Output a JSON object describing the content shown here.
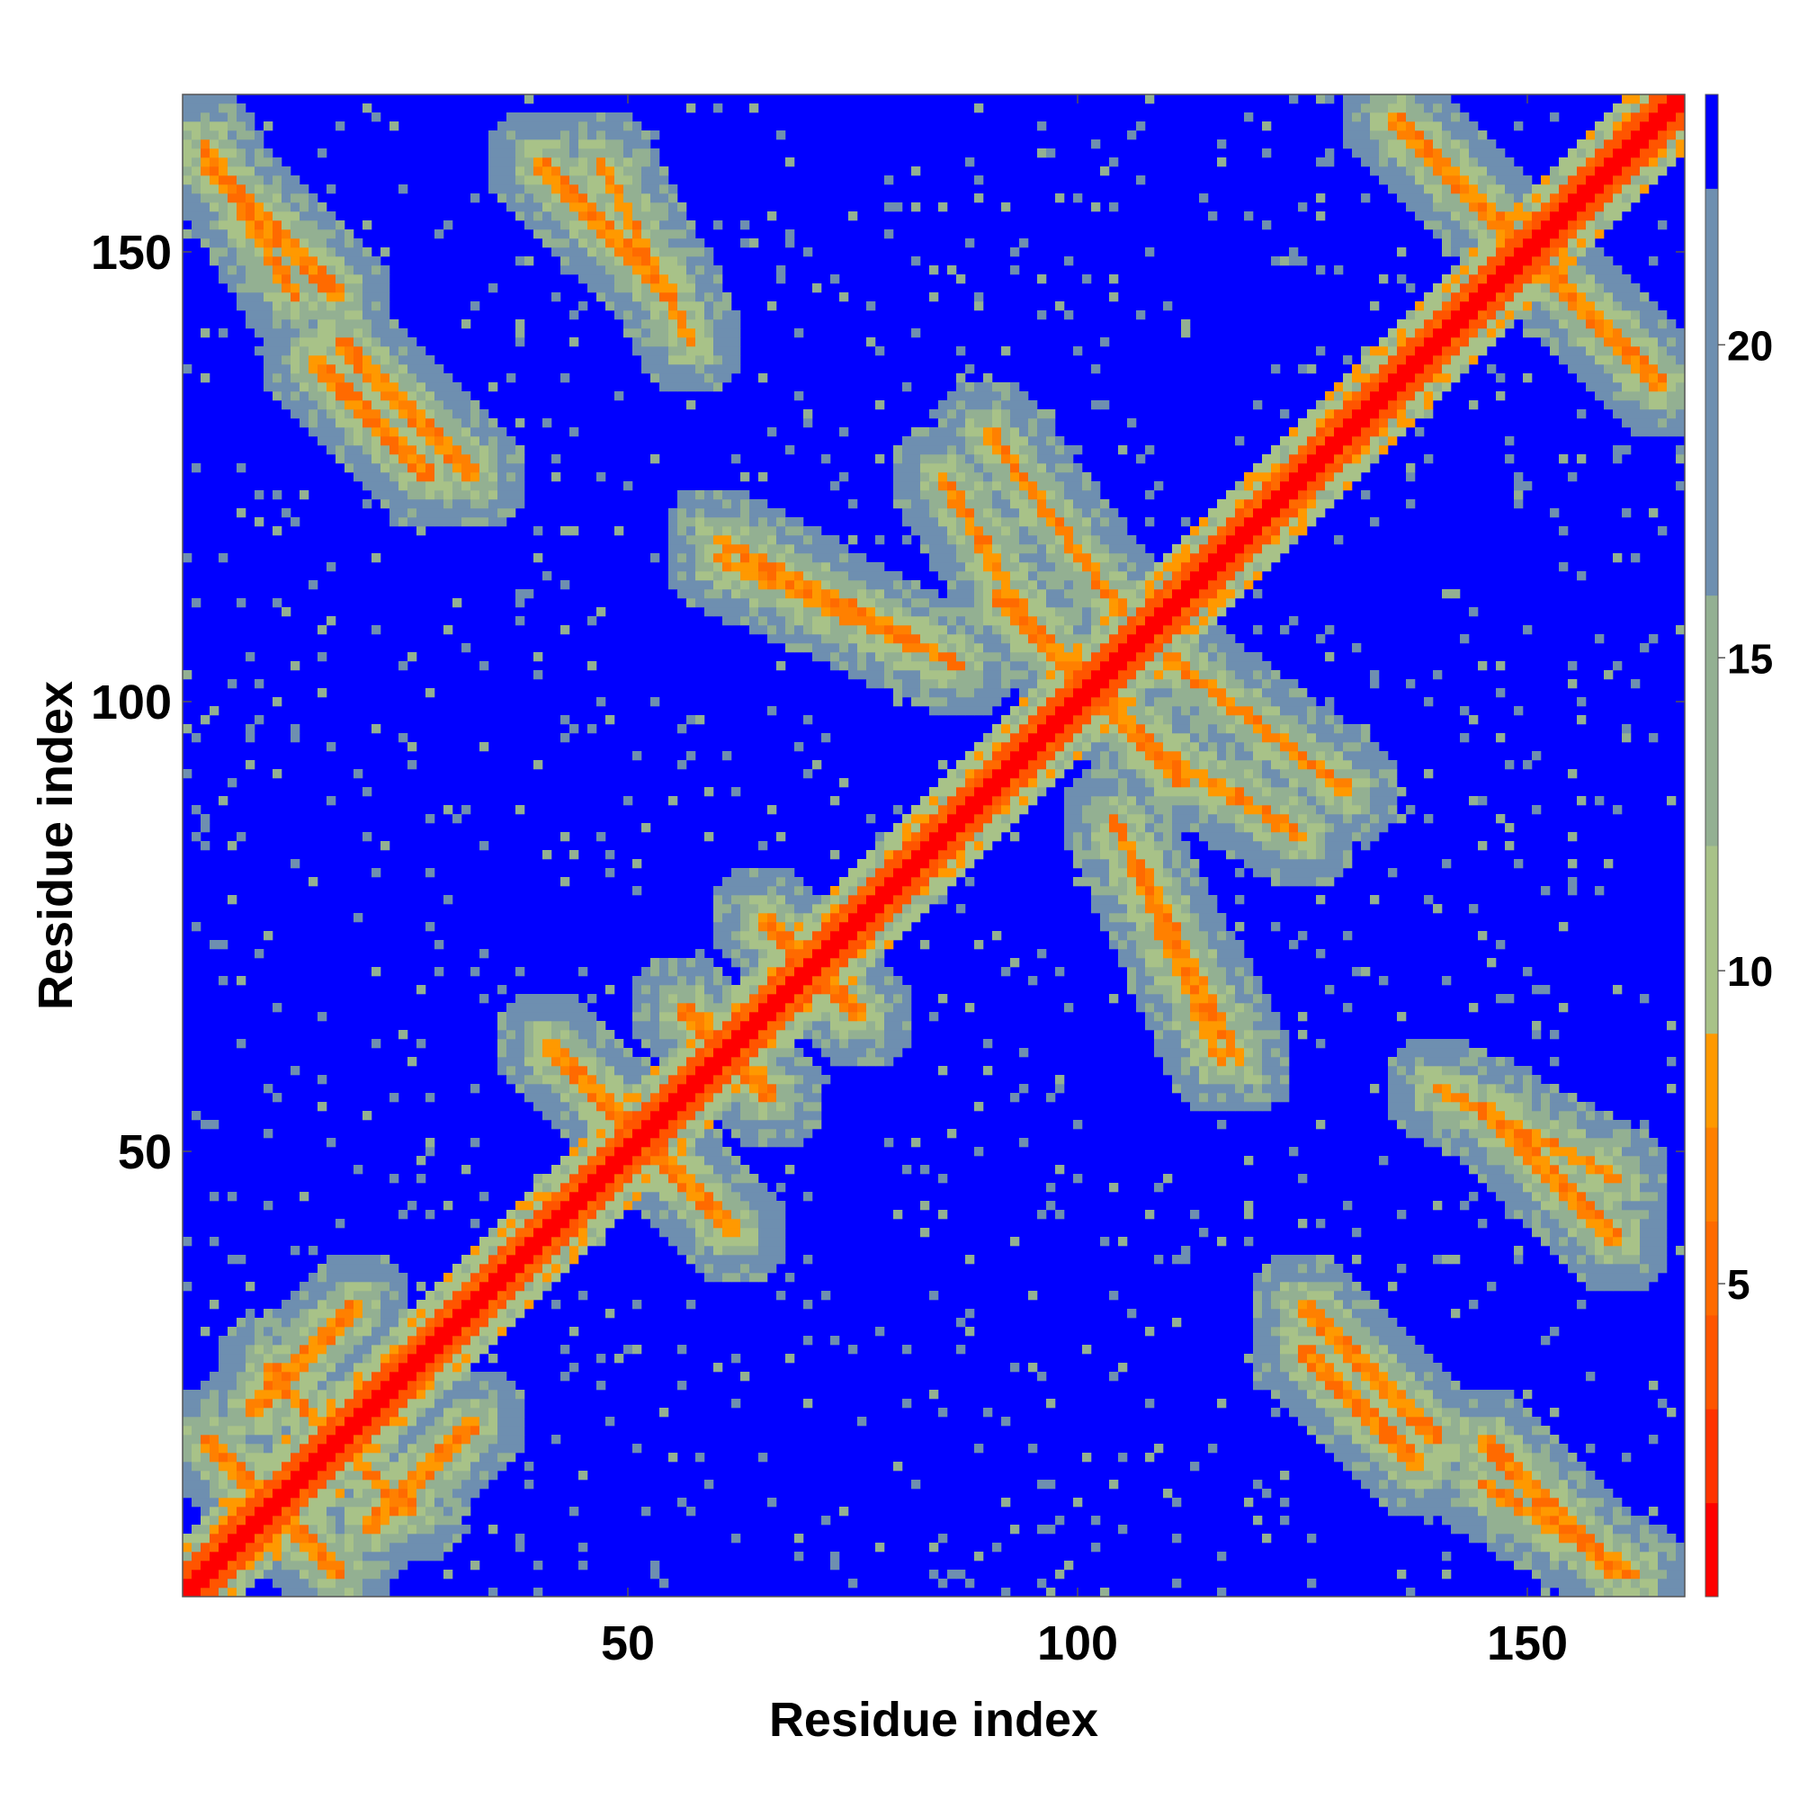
{
  "chart_data": {
    "type": "heatmap",
    "title": "",
    "xlabel": "Residue index",
    "ylabel": "Residue index",
    "n_residues": 167,
    "xlim": [
      1,
      167
    ],
    "ylim": [
      1,
      167
    ],
    "xticks": [
      50,
      100,
      150
    ],
    "yticks": [
      50,
      100,
      150
    ],
    "colorbar": {
      "ticks": [
        5,
        10,
        15,
        20
      ],
      "range": [
        0,
        24
      ],
      "bins": [
        {
          "from": 0,
          "to": 1.5,
          "color": "#ff0000"
        },
        {
          "from": 1.5,
          "to": 3,
          "color": "#ff3300"
        },
        {
          "from": 3,
          "to": 4.5,
          "color": "#ff5500"
        },
        {
          "from": 4.5,
          "to": 6,
          "color": "#ff6a00"
        },
        {
          "from": 6,
          "to": 7.5,
          "color": "#ff8000"
        },
        {
          "from": 7.5,
          "to": 9,
          "color": "#ff9900"
        },
        {
          "from": 9,
          "to": 12,
          "color": "#a8c288"
        },
        {
          "from": 12,
          "to": 16,
          "color": "#93b092"
        },
        {
          "from": 16,
          "to": 22.5,
          "color": "#6e8fb0"
        },
        {
          "from": 22.5,
          "to": 24,
          "color": "#0000ff"
        }
      ]
    },
    "colors": {
      "contact": "#ff0000",
      "near": "#ff8000",
      "mid": "#a8c288",
      "far": "#6e8fb0",
      "background": "#0000ff"
    },
    "contact_bands": [
      {
        "type": "antidiagonal",
        "a": [
          3,
          18
        ],
        "b": [
          18,
          3
        ]
      },
      {
        "type": "antidiagonal",
        "a": [
          10,
          26
        ],
        "b": [
          25,
          10
        ]
      },
      {
        "type": "parallel",
        "a": [
          8,
          21
        ],
        "b": [
          20,
          33
        ]
      },
      {
        "type": "parallel",
        "a": [
          3,
          160
        ],
        "b": [
          18,
          145
        ]
      },
      {
        "type": "parallel",
        "a": [
          15,
          138
        ],
        "b": [
          28,
          125
        ]
      },
      {
        "type": "parallel",
        "a": [
          40,
          160
        ],
        "b": [
          55,
          145
        ]
      },
      {
        "type": "antidiagonal",
        "a": [
          48,
          55
        ],
        "b": [
          62,
          41
        ]
      },
      {
        "type": "antidiagonal",
        "a": [
          57,
          65
        ],
        "b": [
          66,
          56
        ]
      },
      {
        "type": "antidiagonal",
        "a": [
          67,
          74
        ],
        "b": [
          76,
          65
        ]
      },
      {
        "type": "parallel",
        "a": [
          60,
          116
        ],
        "b": [
          85,
          105
        ]
      },
      {
        "type": "parallel",
        "a": [
          90,
          130
        ],
        "b": [
          105,
          110
        ]
      },
      {
        "type": "antidiagonal",
        "a": [
          95,
          108
        ],
        "b": [
          112,
          91
        ]
      },
      {
        "type": "parallel",
        "a": [
          108,
          95
        ],
        "b": [
          125,
          85
        ]
      },
      {
        "type": "parallel",
        "a": [
          104,
          87
        ],
        "b": [
          118,
          60
        ]
      },
      {
        "type": "parallel",
        "a": [
          125,
          33
        ],
        "b": [
          140,
          18
        ]
      },
      {
        "type": "parallel",
        "a": [
          145,
          13
        ],
        "b": [
          162,
          3
        ]
      },
      {
        "type": "parallel",
        "a": [
          140,
          57
        ],
        "b": [
          160,
          47
        ]
      },
      {
        "type": "antidiagonal",
        "a": [
          135,
          165
        ],
        "b": [
          165,
          135
        ]
      }
    ]
  }
}
